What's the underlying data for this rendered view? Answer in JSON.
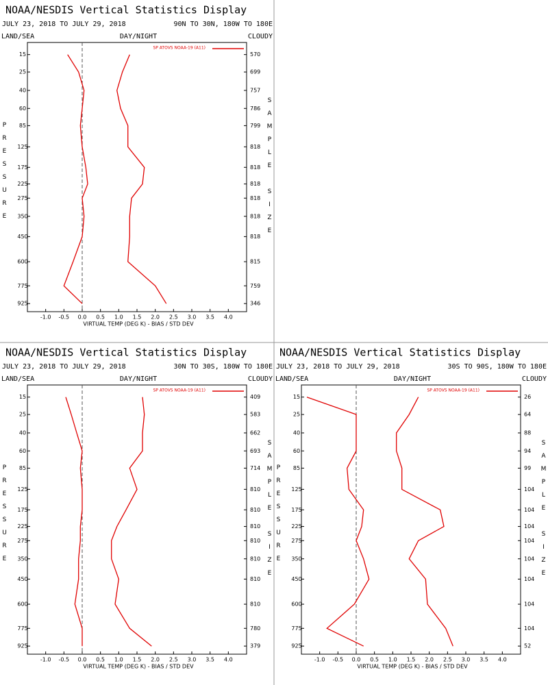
{
  "chart_data": [
    {
      "type": "line",
      "title": "NOAA/NESDIS Vertical Statistics Display",
      "subtitle": "JULY 23, 2018 TO JULY 29, 2018",
      "region": "90N TO 30N, 180W TO 180E",
      "header": [
        "LAND/SEA",
        "DAY/NIGHT",
        "CLOUDY"
      ],
      "legend": "SP ATOVS NOAA-19 (A11)",
      "xlabel": "VIRTUAL TEMP (DEG K) - BIAS / STD DEV",
      "ylabel": "PRESSURE",
      "y2label": "SAMPLE SIZE",
      "xlim": [
        -1.5,
        4.5
      ],
      "xticks": [
        {
          "value": -1,
          "label": "-1.0"
        },
        -0.5,
        {
          "value": 0,
          "label": "0.0"
        },
        0.5,
        {
          "value": 1,
          "label": "1.0"
        },
        1.5,
        {
          "value": 2,
          "label": "2.0"
        },
        2.5,
        {
          "value": 3,
          "label": "3.0"
        },
        3.5,
        {
          "value": 4,
          "label": "4.0"
        }
      ],
      "ylim": [
        10,
        1000
      ],
      "yscale": "power",
      "yscale_exponent": 0.286,
      "yticks": [
        15,
        25,
        40,
        60,
        85,
        125,
        175,
        225,
        275,
        350,
        450,
        600,
        775,
        925
      ],
      "y": [
        15,
        25,
        40,
        60,
        85,
        125,
        175,
        225,
        275,
        350,
        450,
        600,
        775,
        925
      ],
      "sample_sizes": [
        570,
        699,
        757,
        786,
        799,
        818,
        818,
        818,
        818,
        818,
        818,
        815,
        759,
        346
      ],
      "series": [
        {
          "color": "#e00000",
          "values": [
            -0.4,
            -0.1,
            0.05,
            0.0,
            -0.05,
            0.0,
            0.1,
            0.15,
            0.0,
            0.05,
            0.0,
            -0.25,
            -0.5,
            0.0
          ]
        },
        {
          "color": "#e00000",
          "values": [
            1.3,
            1.1,
            0.95,
            1.05,
            1.25,
            1.25,
            1.7,
            1.65,
            1.35,
            1.3,
            1.3,
            1.25,
            2.0,
            2.3
          ]
        }
      ]
    },
    {
      "type": "line",
      "title": "NOAA/NESDIS Vertical Statistics Display",
      "subtitle": "JULY 23, 2018 TO JULY 29, 2018",
      "region": "30N TO 30S, 180W TO 180E",
      "header": [
        "LAND/SEA",
        "DAY/NIGHT",
        "CLOUDY"
      ],
      "legend": "SP ATOVS NOAA-19 (A11)",
      "xlabel": "VIRTUAL TEMP (DEG K) - BIAS / STD DEV",
      "ylabel": "PRESSURE",
      "y2label": "SAMPLE SIZE",
      "xlim": [
        -1.5,
        4.5
      ],
      "xticks": [
        {
          "value": -1,
          "label": "-1.0"
        },
        -0.5,
        {
          "value": 0,
          "label": "0.0"
        },
        0.5,
        {
          "value": 1,
          "label": "1.0"
        },
        1.5,
        {
          "value": 2,
          "label": "2.0"
        },
        2.5,
        {
          "value": 3,
          "label": "3.0"
        },
        3.5,
        {
          "value": 4,
          "label": "4.0"
        }
      ],
      "ylim": [
        10,
        1000
      ],
      "yscale": "power",
      "yscale_exponent": 0.286,
      "yticks": [
        15,
        25,
        40,
        60,
        85,
        125,
        175,
        225,
        275,
        350,
        450,
        600,
        775,
        925
      ],
      "y": [
        15,
        25,
        40,
        60,
        85,
        125,
        175,
        225,
        275,
        350,
        450,
        600,
        775,
        925
      ],
      "sample_sizes": [
        409,
        583,
        662,
        693,
        714,
        810,
        810,
        810,
        810,
        810,
        810,
        810,
        780,
        379
      ],
      "series": [
        {
          "color": "#e00000",
          "values": [
            -0.45,
            -0.3,
            -0.15,
            0.0,
            -0.05,
            0.0,
            0.0,
            -0.05,
            -0.05,
            -0.1,
            -0.1,
            -0.2,
            0.0,
            0.0
          ]
        },
        {
          "color": "#e00000",
          "values": [
            1.65,
            1.7,
            1.65,
            1.65,
            1.3,
            1.5,
            1.2,
            0.95,
            0.8,
            0.8,
            1.0,
            0.9,
            1.3,
            1.9
          ]
        }
      ]
    },
    {
      "type": "line",
      "title": "NOAA/NESDIS Vertical Statistics Display",
      "subtitle": "JULY 23, 2018 TO JULY 29, 2018",
      "region": "30S TO 90S, 180W TO 180E",
      "header": [
        "LAND/SEA",
        "DAY/NIGHT",
        "CLOUDY"
      ],
      "legend": "SP ATOVS NOAA-19 (A11)",
      "xlabel": "VIRTUAL TEMP (DEG K) - BIAS / STD DEV",
      "ylabel": "PRESSURE",
      "y2label": "SAMPLE SIZE",
      "xlim": [
        -1.5,
        4.5
      ],
      "xticks": [
        {
          "value": -1,
          "label": "-1.0"
        },
        -0.5,
        {
          "value": 0,
          "label": "0.0"
        },
        0.5,
        {
          "value": 1,
          "label": "1.0"
        },
        1.5,
        {
          "value": 2,
          "label": "2.0"
        },
        2.5,
        {
          "value": 3,
          "label": "3.0"
        },
        3.5,
        {
          "value": 4,
          "label": "4.0"
        }
      ],
      "ylim": [
        10,
        1000
      ],
      "yscale": "power",
      "yscale_exponent": 0.286,
      "yticks": [
        15,
        25,
        40,
        60,
        85,
        125,
        175,
        225,
        275,
        350,
        450,
        600,
        775,
        925
      ],
      "y": [
        15,
        25,
        40,
        60,
        85,
        125,
        175,
        225,
        275,
        350,
        450,
        600,
        775,
        925
      ],
      "sample_sizes": [
        26,
        64,
        88,
        94,
        99,
        104,
        104,
        104,
        104,
        104,
        104,
        104,
        104,
        52
      ],
      "series": [
        {
          "color": "#e00000",
          "values": [
            -1.35,
            0.0,
            0.0,
            0.0,
            -0.25,
            -0.2,
            0.2,
            0.15,
            0.0,
            0.2,
            0.35,
            -0.05,
            -0.8,
            0.2
          ]
        },
        {
          "color": "#e00000",
          "values": [
            1.7,
            1.45,
            1.1,
            1.1,
            1.25,
            1.25,
            2.3,
            2.4,
            1.7,
            1.45,
            1.9,
            1.95,
            2.45,
            2.65
          ]
        }
      ]
    }
  ]
}
